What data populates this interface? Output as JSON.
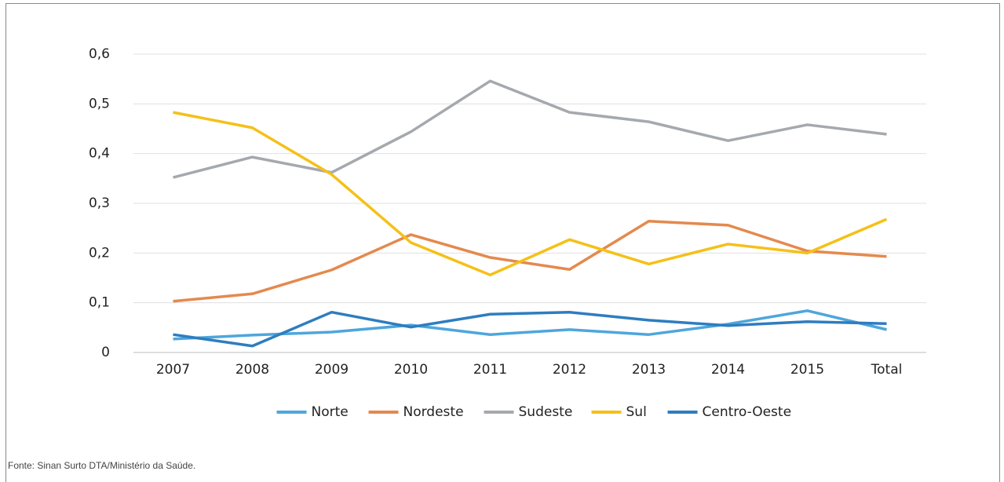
{
  "chart_data": {
    "type": "line",
    "categories": [
      "2007",
      "2008",
      "2009",
      "2010",
      "2011",
      "2012",
      "2013",
      "2014",
      "2015",
      "Total"
    ],
    "series": [
      {
        "name": "Norte",
        "color": "#4ea6dc",
        "values": [
          0.027,
          0.035,
          0.041,
          0.055,
          0.036,
          0.046,
          0.036,
          0.057,
          0.084,
          0.046
        ]
      },
      {
        "name": "Nordeste",
        "color": "#e4894e",
        "values": [
          0.103,
          0.118,
          0.166,
          0.237,
          0.191,
          0.167,
          0.264,
          0.256,
          0.204,
          0.193
        ]
      },
      {
        "name": "Sudeste",
        "color": "#a5a9ae",
        "values": [
          0.352,
          0.393,
          0.362,
          0.444,
          0.546,
          0.483,
          0.464,
          0.426,
          0.458,
          0.439
        ]
      },
      {
        "name": "Sul",
        "color": "#f5c018",
        "values": [
          0.483,
          0.452,
          0.358,
          0.221,
          0.156,
          0.227,
          0.178,
          0.218,
          0.2,
          0.268
        ]
      },
      {
        "name": "Centro-Oeste",
        "color": "#2e7dbf",
        "values": [
          0.036,
          0.013,
          0.081,
          0.051,
          0.077,
          0.081,
          0.065,
          0.054,
          0.062,
          0.058
        ]
      }
    ],
    "ylim": [
      0,
      0.6
    ],
    "yticks": [
      0,
      {
        "value": 0.1,
        "label": "0,1"
      },
      {
        "value": 0.2,
        "label": "0,2"
      },
      {
        "value": 0.3,
        "label": "0,3"
      },
      {
        "value": 0.4,
        "label": "0,4"
      },
      {
        "value": 0.5,
        "label": "0,5"
      },
      {
        "value": 0.6,
        "label": "0,6"
      }
    ],
    "grid": true,
    "legend": "bottom",
    "source": "Fonte: Sinan Surto DTA/Ministério da Saúde."
  }
}
